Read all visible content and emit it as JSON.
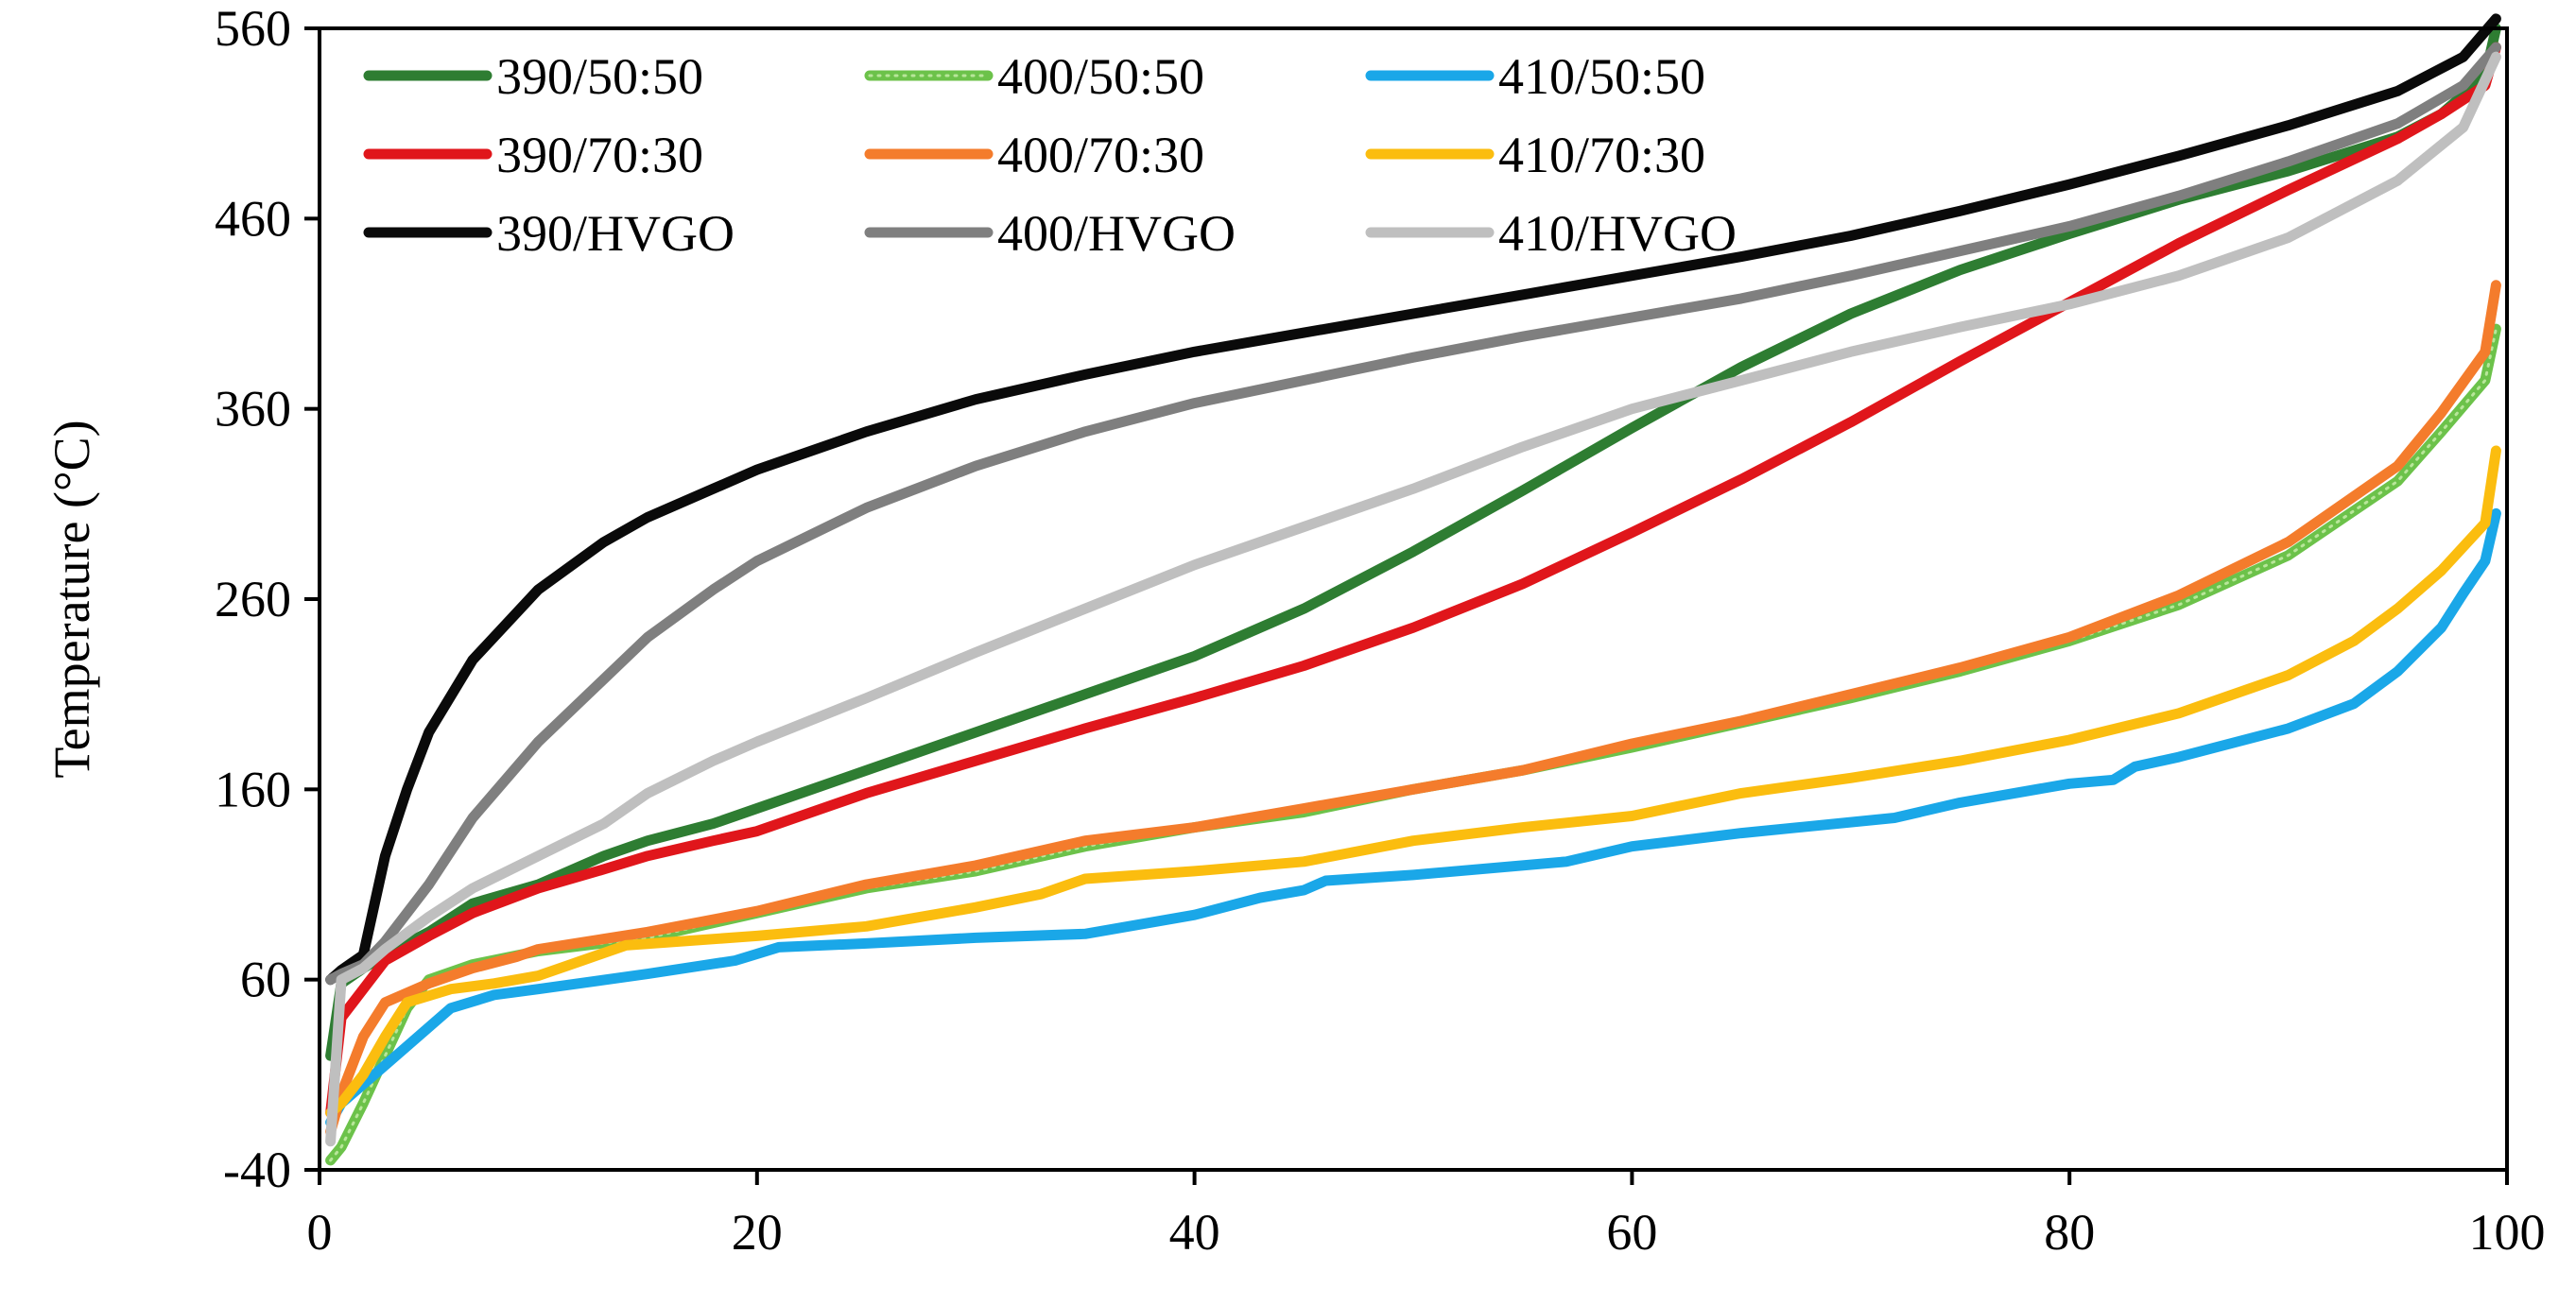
{
  "chart_data": {
    "type": "line",
    "title": "",
    "xlabel": "",
    "ylabel": "Temperature (°C)",
    "xlim": [
      0,
      100
    ],
    "ylim": [
      -40,
      560
    ],
    "xticks": [
      "0",
      "20",
      "40",
      "60",
      "80",
      "100"
    ],
    "yticks": [
      "-40",
      "60",
      "160",
      "260",
      "360",
      "460",
      "560"
    ],
    "grid": false,
    "legend": "top-left, 3 columns",
    "series": [
      {
        "name": "390/50:50",
        "color": "#2e7d32",
        "dotted": false,
        "x": [
          0.5,
          1,
          2,
          3,
          5,
          7,
          10,
          13,
          15,
          18,
          20,
          25,
          30,
          35,
          40,
          45,
          50,
          55,
          60,
          65,
          70,
          75,
          80,
          85,
          90,
          95,
          97,
          99,
          99.5
        ],
        "y": [
          20,
          58,
          66,
          73,
          85,
          100,
          110,
          125,
          133,
          142,
          150,
          170,
          190,
          210,
          230,
          255,
          285,
          317,
          350,
          382,
          410,
          433,
          452,
          470,
          485,
          503,
          515,
          535,
          560
        ]
      },
      {
        "name": "400/50:50",
        "color": "#6cc24a",
        "dotted": true,
        "x": [
          0.5,
          1,
          2,
          3,
          4,
          5,
          7,
          10,
          15,
          20,
          25,
          30,
          35,
          40,
          45,
          50,
          55,
          60,
          65,
          70,
          75,
          80,
          85,
          90,
          95,
          97,
          99,
          99.5
        ],
        "y": [
          -35,
          -28,
          -5,
          20,
          45,
          60,
          68,
          75,
          82,
          95,
          108,
          117,
          130,
          140,
          148,
          160,
          170,
          182,
          195,
          208,
          222,
          238,
          257,
          283,
          322,
          348,
          375,
          402
        ]
      },
      {
        "name": "410/50:50",
        "color": "#1aa7e8",
        "dotted": false,
        "x": [
          0.5,
          1,
          2,
          4,
          6,
          8,
          10,
          15,
          19,
          21,
          25,
          30,
          35,
          40,
          43,
          45,
          46,
          50,
          57,
          60,
          65,
          72,
          75,
          80,
          82,
          83,
          85,
          90,
          93,
          95,
          97,
          98,
          99,
          99.5
        ],
        "y": [
          -15,
          -5,
          5,
          25,
          45,
          52,
          55,
          63,
          70,
          77,
          79,
          82,
          84,
          94,
          103,
          107,
          112,
          115,
          122,
          130,
          137,
          145,
          153,
          163,
          165,
          172,
          177,
          192,
          205,
          222,
          245,
          263,
          280,
          305
        ]
      },
      {
        "name": "390/70:30",
        "color": "#e0161b",
        "dotted": false,
        "x": [
          0.5,
          1,
          2,
          3,
          5,
          7,
          10,
          13,
          15,
          18,
          20,
          25,
          30,
          35,
          40,
          45,
          50,
          55,
          60,
          65,
          70,
          75,
          80,
          85,
          90,
          95,
          97,
          99,
          99.5
        ],
        "y": [
          -10,
          40,
          55,
          70,
          83,
          95,
          108,
          118,
          125,
          133,
          138,
          158,
          175,
          192,
          208,
          225,
          245,
          268,
          295,
          323,
          353,
          385,
          416,
          447,
          475,
          502,
          515,
          530,
          550
        ]
      },
      {
        "name": "400/70:30",
        "color": "#f47c2c",
        "dotted": false,
        "x": [
          0.5,
          1,
          2,
          3,
          5,
          7,
          9,
          10,
          15,
          20,
          25,
          30,
          35,
          40,
          45,
          50,
          55,
          60,
          65,
          70,
          75,
          80,
          85,
          90,
          95,
          97,
          99,
          99.5
        ],
        "y": [
          -20,
          0,
          30,
          48,
          58,
          66,
          72,
          76,
          85,
          96,
          110,
          120,
          133,
          140,
          150,
          160,
          170,
          184,
          196,
          210,
          224,
          240,
          262,
          290,
          330,
          358,
          390,
          425
        ]
      },
      {
        "name": "410/70:30",
        "color": "#fbbd0f",
        "dotted": false,
        "x": [
          0.5,
          1,
          2,
          3,
          4,
          6,
          8,
          10,
          12,
          14,
          20,
          25,
          30,
          33,
          35,
          40,
          45,
          50,
          55,
          60,
          65,
          70,
          75,
          80,
          85,
          90,
          93,
          95,
          97,
          99,
          99.5
        ],
        "y": [
          -10,
          -5,
          10,
          30,
          48,
          55,
          58,
          62,
          70,
          78,
          83,
          88,
          98,
          105,
          113,
          117,
          122,
          133,
          140,
          146,
          158,
          166,
          175,
          186,
          200,
          220,
          238,
          255,
          275,
          300,
          338
        ]
      },
      {
        "name": "390/HVGO",
        "color": "#0a0a0a",
        "dotted": false,
        "x": [
          0.5,
          1,
          2,
          3,
          4,
          5,
          7,
          10,
          13,
          15,
          18,
          20,
          25,
          30,
          35,
          40,
          45,
          50,
          55,
          60,
          65,
          70,
          75,
          80,
          85,
          90,
          95,
          98,
          99.5
        ],
        "y": [
          60,
          65,
          73,
          125,
          160,
          190,
          228,
          265,
          290,
          303,
          318,
          328,
          348,
          365,
          378,
          390,
          400,
          410,
          420,
          430,
          440,
          451,
          464,
          478,
          493,
          509,
          527,
          545,
          565
        ]
      },
      {
        "name": "400/HVGO",
        "color": "#7f7f7f",
        "dotted": false,
        "x": [
          0.5,
          1,
          2,
          3,
          5,
          7,
          10,
          13,
          15,
          18,
          20,
          25,
          30,
          35,
          40,
          45,
          50,
          55,
          60,
          65,
          70,
          75,
          80,
          85,
          90,
          95,
          98,
          99.5
        ],
        "y": [
          60,
          63,
          68,
          80,
          110,
          145,
          185,
          218,
          240,
          265,
          280,
          308,
          330,
          348,
          363,
          375,
          387,
          398,
          408,
          418,
          430,
          443,
          456,
          472,
          490,
          510,
          530,
          550
        ]
      },
      {
        "name": "410/HVGO",
        "color": "#bfbfbf",
        "dotted": false,
        "x": [
          0.5,
          1,
          2,
          3,
          5,
          7,
          10,
          13,
          15,
          18,
          20,
          25,
          30,
          35,
          40,
          45,
          50,
          55,
          60,
          65,
          70,
          75,
          80,
          85,
          90,
          95,
          98,
          99.5
        ],
        "y": [
          -25,
          60,
          66,
          76,
          93,
          108,
          125,
          142,
          158,
          175,
          185,
          208,
          232,
          255,
          278,
          298,
          318,
          340,
          360,
          375,
          390,
          403,
          415,
          430,
          450,
          480,
          508,
          545
        ]
      }
    ]
  }
}
